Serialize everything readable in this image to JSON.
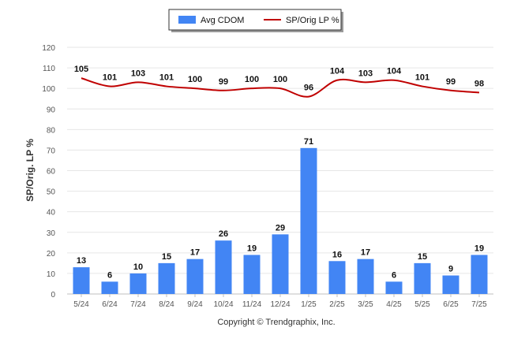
{
  "chart_data": {
    "type": "bar",
    "categories": [
      "5/24",
      "6/24",
      "7/24",
      "8/24",
      "9/24",
      "10/24",
      "11/24",
      "12/24",
      "1/25",
      "2/25",
      "3/25",
      "4/25",
      "5/25",
      "6/25",
      "7/25"
    ],
    "series": [
      {
        "name": "Avg CDOM",
        "type": "bar",
        "color": "#4285f4",
        "values": [
          13,
          6,
          10,
          15,
          17,
          26,
          19,
          29,
          71,
          16,
          17,
          6,
          15,
          9,
          19
        ]
      },
      {
        "name": "SP/Orig LP %",
        "type": "line",
        "color": "#c00000",
        "values": [
          105,
          101,
          103,
          101,
          100,
          99,
          100,
          100,
          96,
          104,
          103,
          104,
          101,
          99,
          98
        ]
      }
    ],
    "ylabel": "SP/Orig. LP %",
    "ylim": [
      0,
      120
    ],
    "yticks": [
      0,
      10,
      20,
      30,
      40,
      50,
      60,
      70,
      80,
      90,
      100,
      110,
      120
    ],
    "grid": true,
    "legend_position": "top-center",
    "data_labels": true
  },
  "footer": {
    "credit": "Copyright © Trendgraphix, Inc."
  }
}
